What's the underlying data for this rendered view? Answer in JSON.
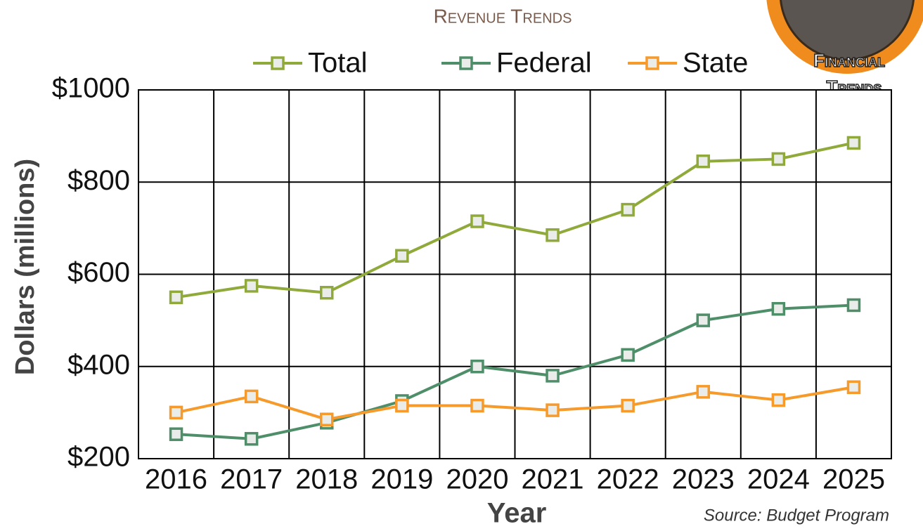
{
  "chart_data": {
    "type": "line",
    "title": "Revenue Trends",
    "x_label": "Year",
    "y_label": "Dollars (millions)",
    "source": "Source: Budget Program",
    "logo": {
      "line1": "Financial",
      "line2": "Trends"
    },
    "categories": [
      "2016",
      "2017",
      "2018",
      "2019",
      "2020",
      "2021",
      "2022",
      "2023",
      "2024",
      "2025"
    ],
    "series": [
      {
        "name": "Total",
        "color": "#8faa3a",
        "values": [
          550,
          575,
          560,
          640,
          715,
          685,
          740,
          845,
          850,
          885
        ]
      },
      {
        "name": "Federal",
        "color": "#4e8f6a",
        "values": [
          253,
          243,
          278,
          325,
          400,
          380,
          425,
          500,
          525,
          533
        ]
      },
      {
        "name": "State",
        "color": "#f59a2b",
        "values": [
          300,
          335,
          285,
          315,
          315,
          305,
          315,
          345,
          327,
          355
        ]
      }
    ],
    "ylim": [
      200,
      1000
    ],
    "yticks": [
      {
        "value": 200,
        "label": "$200"
      },
      {
        "value": 400,
        "label": "$400"
      },
      {
        "value": 600,
        "label": "$600"
      },
      {
        "value": 800,
        "label": "$800"
      },
      {
        "value": 1000,
        "label": "$1000"
      }
    ],
    "grid": true,
    "legend": "top"
  }
}
